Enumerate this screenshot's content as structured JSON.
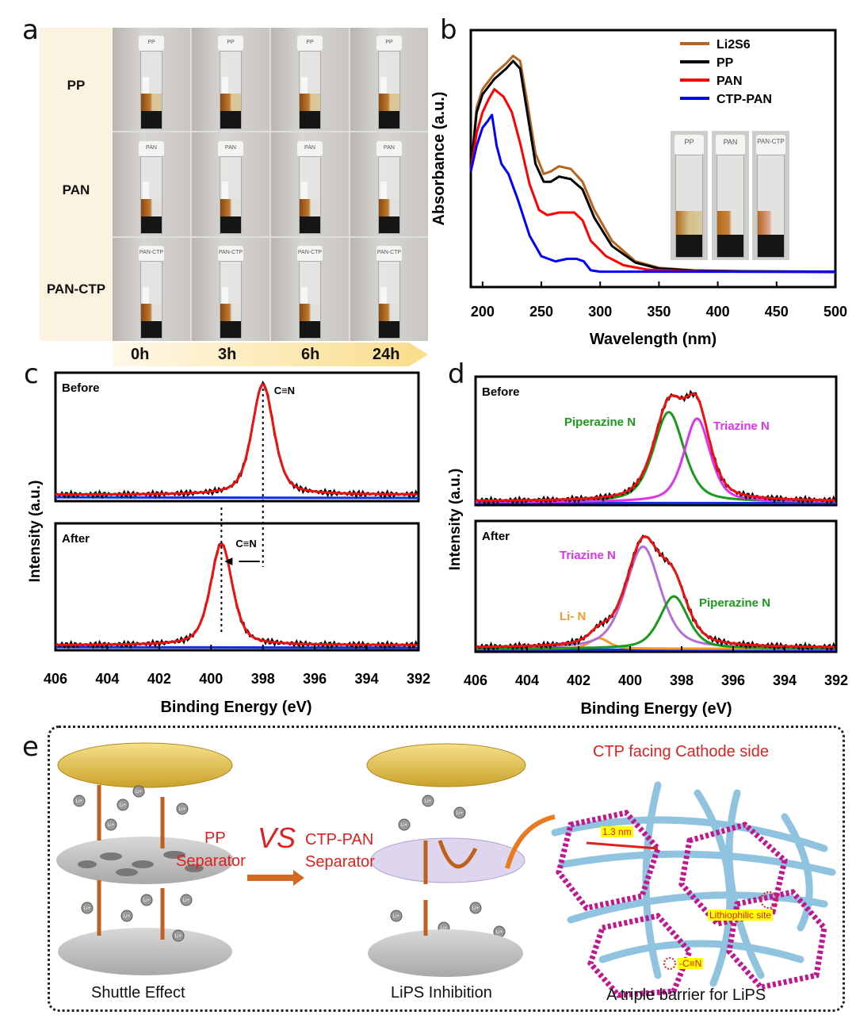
{
  "panel_labels": [
    "a",
    "b",
    "c",
    "d",
    "e"
  ],
  "panel_a": {
    "rows": [
      "PP",
      "PAN",
      "PAN-CTP"
    ],
    "times": [
      "0h",
      "3h",
      "6h",
      "24h"
    ],
    "cap_labels": [
      "PP",
      "PAN",
      "PAN-CTP"
    ]
  },
  "panel_b_inset": [
    "PP",
    "PAN",
    "PAN-CTP"
  ],
  "panel_e": {
    "cathode_note": "CTP facing Cathode side",
    "pp_label": "PP",
    "pp_sep": "Separator",
    "vs": "VS",
    "ctp_label": "CTP-PAN",
    "ctp_sep": "Separator",
    "cap1": "Shuttle Effect",
    "cap2": "LiPS Inhibition",
    "cap3": "A triple barrier for LiPS",
    "pore": "1.3 nm",
    "site": "Lithiophilic site",
    "cn": "-C≡N",
    "ion": "Li+"
  },
  "chart_data": [
    {
      "id": "b",
      "type": "line",
      "xlabel": "Wavelength (nm)",
      "ylabel": "Absorbance (a.u.)",
      "xlim": [
        190,
        500
      ],
      "ylim": [
        0,
        1
      ],
      "xticks": [
        200,
        250,
        300,
        350,
        400,
        450,
        500
      ],
      "legend": "top-right",
      "series": [
        {
          "name": "Li2S6",
          "color": "#b5651d",
          "x": [
            190,
            195,
            200,
            210,
            220,
            226,
            232,
            238,
            245,
            252,
            258,
            265,
            275,
            285,
            295,
            310,
            330,
            350,
            380,
            420,
            500
          ],
          "y": [
            0.45,
            0.7,
            0.77,
            0.83,
            0.87,
            0.9,
            0.88,
            0.72,
            0.52,
            0.44,
            0.45,
            0.47,
            0.46,
            0.41,
            0.3,
            0.18,
            0.1,
            0.075,
            0.065,
            0.062,
            0.06
          ]
        },
        {
          "name": "PP",
          "color": "#000000",
          "x": [
            190,
            195,
            200,
            210,
            220,
            226,
            232,
            238,
            245,
            252,
            258,
            265,
            275,
            285,
            295,
            310,
            330,
            350,
            380,
            420,
            500
          ],
          "y": [
            0.45,
            0.68,
            0.75,
            0.81,
            0.85,
            0.88,
            0.85,
            0.68,
            0.48,
            0.41,
            0.41,
            0.43,
            0.42,
            0.38,
            0.27,
            0.16,
            0.095,
            0.072,
            0.064,
            0.061,
            0.06
          ]
        },
        {
          "name": "PAN",
          "color": "#ff0000",
          "x": [
            190,
            195,
            200,
            205,
            210,
            218,
            225,
            232,
            240,
            248,
            255,
            265,
            278,
            285,
            292,
            305,
            320,
            340,
            370,
            420,
            500
          ],
          "y": [
            0.45,
            0.6,
            0.68,
            0.73,
            0.77,
            0.74,
            0.68,
            0.56,
            0.4,
            0.3,
            0.28,
            0.29,
            0.29,
            0.26,
            0.18,
            0.12,
            0.085,
            0.068,
            0.062,
            0.06,
            0.058
          ]
        },
        {
          "name": "CTP-PAN",
          "color": "#0000ff",
          "x": [
            190,
            195,
            200,
            205,
            208,
            212,
            216,
            222,
            230,
            240,
            250,
            262,
            272,
            280,
            286,
            292,
            300,
            350,
            500
          ],
          "y": [
            0.45,
            0.55,
            0.62,
            0.65,
            0.67,
            0.55,
            0.48,
            0.44,
            0.34,
            0.2,
            0.12,
            0.1,
            0.11,
            0.11,
            0.1,
            0.065,
            0.06,
            0.06,
            0.06
          ]
        }
      ]
    },
    {
      "id": "c",
      "type": "line",
      "xlabel": "Binding Energy (eV)",
      "ylabel": "Intensity (a.u.)",
      "xlim": [
        406,
        392
      ],
      "xticks": [
        406,
        404,
        402,
        400,
        398,
        396,
        394,
        392
      ],
      "subplots": [
        {
          "label": "Before",
          "baseline": 0.05,
          "peaks": [
            {
              "name": "C≡N",
              "center": 398.0,
              "fwhm": 1.0,
              "height": 0.86,
              "color": null
            }
          ]
        },
        {
          "label": "After",
          "baseline": 0.04,
          "peaks": [
            {
              "name": "C≡N",
              "center": 399.6,
              "fwhm": 1.0,
              "height": 0.8,
              "color": null
            }
          ]
        }
      ]
    },
    {
      "id": "d",
      "type": "line",
      "xlabel": "Binding Energy (eV)",
      "ylabel": "Intensity (a.u.)",
      "xlim": [
        406,
        392
      ],
      "xticks": [
        406,
        404,
        402,
        400,
        398,
        396,
        394,
        392
      ],
      "subplots": [
        {
          "label": "Before",
          "baseline": 0.03,
          "peaks": [
            {
              "name": "Piperazine N",
              "center": 398.5,
              "fwhm": 1.4,
              "height": 0.7,
              "color": "#1a9a1a"
            },
            {
              "name": "Triazine N",
              "center": 397.4,
              "fwhm": 1.2,
              "height": 0.65,
              "color": "#dd33ee"
            }
          ]
        },
        {
          "label": "After",
          "baseline": 0.03,
          "peaks": [
            {
              "name": "Li- N",
              "center": 401.2,
              "fwhm": 0.9,
              "height": 0.08,
              "color": "#f39a2a"
            },
            {
              "name": "Triazine N",
              "center": 399.5,
              "fwhm": 1.6,
              "height": 0.78,
              "color": "#b070d8"
            },
            {
              "name": "Piperazine N",
              "center": 398.3,
              "fwhm": 1.3,
              "height": 0.4,
              "color": "#1a9a1a"
            }
          ]
        }
      ]
    }
  ]
}
